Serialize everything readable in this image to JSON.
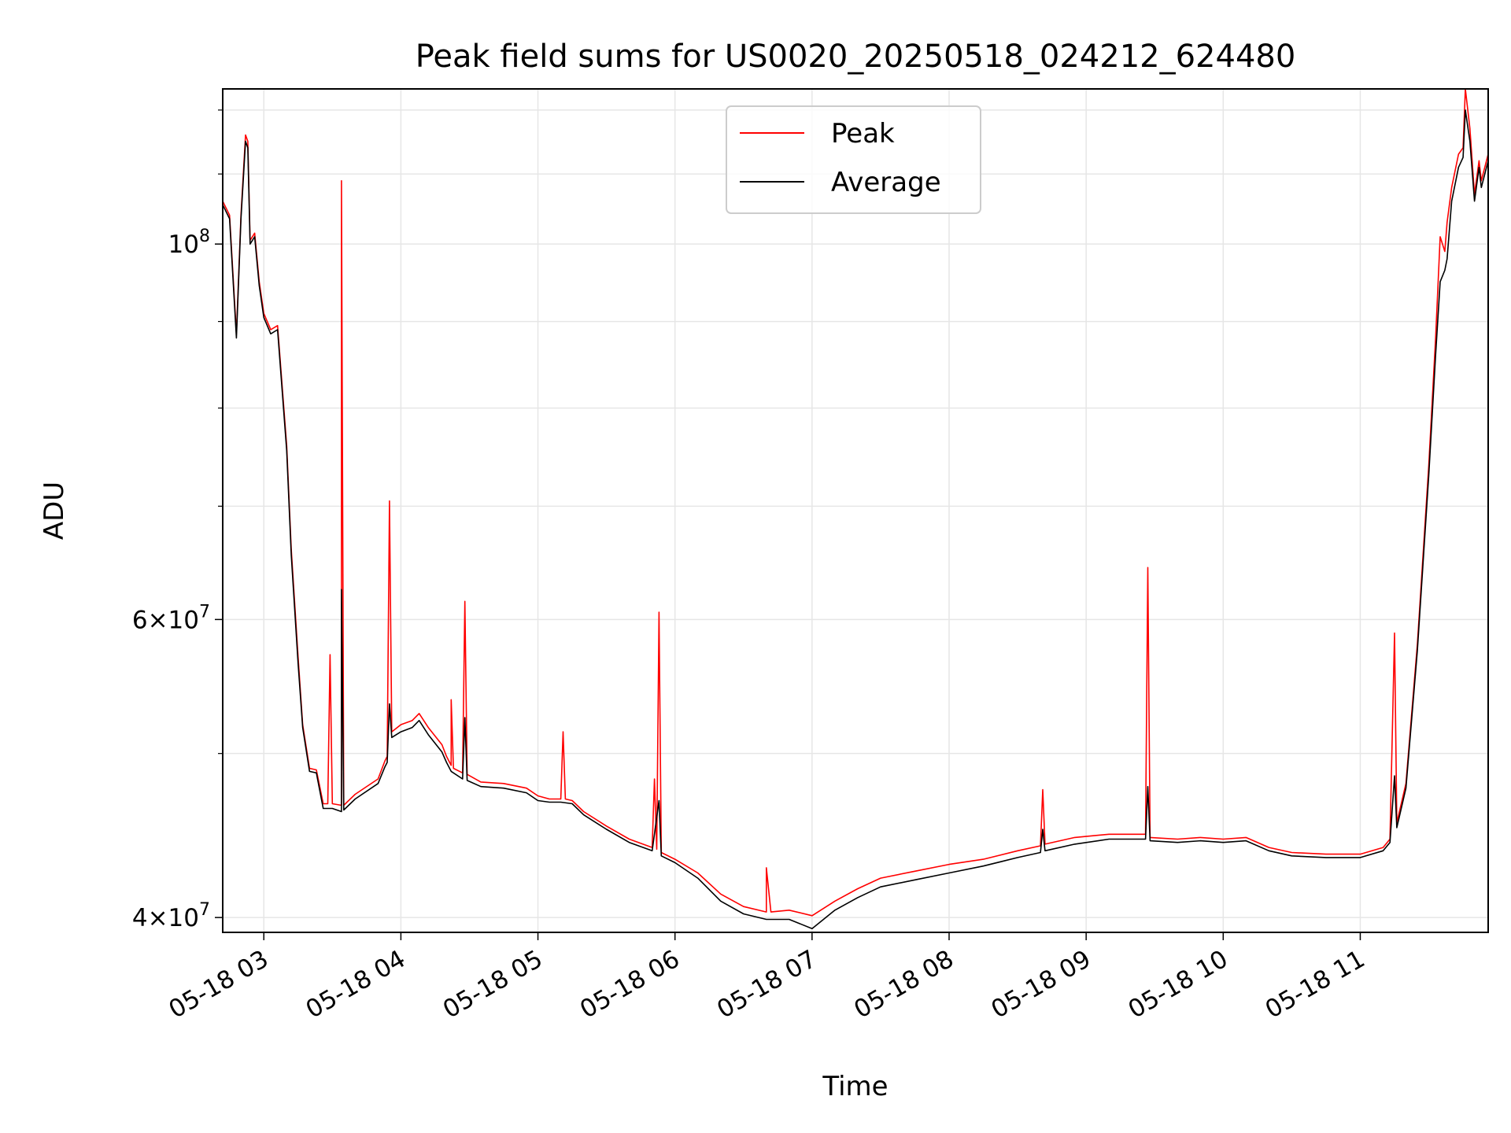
{
  "chart_data": {
    "type": "line",
    "title": "Peak field sums for US0020_20250518_024212_624480",
    "xlabel": "Time",
    "ylabel": "ADU",
    "y_scale": "log",
    "ylim": [
      39200000,
      123500000
    ],
    "xlim": [
      "2025-05-18 02:42",
      "2025-05-18 11:56"
    ],
    "grid": true,
    "legend_position": "upper center",
    "x_ticks": [
      {
        "t": "2025-05-18 03:00",
        "label": "05-18 03"
      },
      {
        "t": "2025-05-18 04:00",
        "label": "05-18 04"
      },
      {
        "t": "2025-05-18 05:00",
        "label": "05-18 05"
      },
      {
        "t": "2025-05-18 06:00",
        "label": "05-18 06"
      },
      {
        "t": "2025-05-18 07:00",
        "label": "05-18 07"
      },
      {
        "t": "2025-05-18 08:00",
        "label": "05-18 08"
      },
      {
        "t": "2025-05-18 09:00",
        "label": "05-18 09"
      },
      {
        "t": "2025-05-18 10:00",
        "label": "05-18 10"
      },
      {
        "t": "2025-05-18 11:00",
        "label": "05-18 11"
      }
    ],
    "y_ticks_major": [
      {
        "value": 40000000,
        "base": "4",
        "times": "×",
        "exp_base": "10",
        "exp": "7"
      },
      {
        "value": 60000000,
        "base": "6",
        "times": "×",
        "exp_base": "10",
        "exp": "7"
      },
      {
        "value": 100000000,
        "base": "",
        "times": "",
        "exp_base": "10",
        "exp": "8"
      }
    ],
    "y_ticks_minor": [
      50000000,
      70000000,
      80000000,
      90000000,
      110000000,
      120000000
    ],
    "series": [
      {
        "name": "Peak",
        "color": "#ff0000",
        "points": [
          [
            "2025-05-18 02:42",
            106000000
          ],
          [
            "2025-05-18 02:45",
            104000000
          ],
          [
            "2025-05-18 02:48",
            88500000
          ],
          [
            "2025-05-18 02:50",
            104000000
          ],
          [
            "2025-05-18 02:52",
            116000000
          ],
          [
            "2025-05-18 02:53",
            115000000
          ],
          [
            "2025-05-18 02:54",
            100500000
          ],
          [
            "2025-05-18 02:56",
            101500000
          ],
          [
            "2025-05-18 02:58",
            95000000
          ],
          [
            "2025-05-18 03:00",
            91000000
          ],
          [
            "2025-05-18 03:03",
            89000000
          ],
          [
            "2025-05-18 03:06",
            89500000
          ],
          [
            "2025-05-18 03:10",
            76000000
          ],
          [
            "2025-05-18 03:12",
            66000000
          ],
          [
            "2025-05-18 03:15",
            57000000
          ],
          [
            "2025-05-18 03:17",
            52000000
          ],
          [
            "2025-05-18 03:20",
            49000000
          ],
          [
            "2025-05-18 03:23",
            48900000
          ],
          [
            "2025-05-18 03:26",
            46700000
          ],
          [
            "2025-05-18 03:28",
            46700000
          ],
          [
            "2025-05-18 03:29",
            57200000
          ],
          [
            "2025-05-18 03:30",
            46700000
          ],
          [
            "2025-05-18 03:34",
            46600000
          ],
          [
            "2025-05-18 03:34",
            109000000
          ],
          [
            "2025-05-18 03:35",
            46600000
          ],
          [
            "2025-05-18 03:40",
            47300000
          ],
          [
            "2025-05-18 03:50",
            48300000
          ],
          [
            "2025-05-18 03:53",
            49500000
          ],
          [
            "2025-05-18 03:54",
            49800000
          ],
          [
            "2025-05-18 03:55",
            70500000
          ],
          [
            "2025-05-18 03:56",
            51500000
          ],
          [
            "2025-05-18 04:00",
            52000000
          ],
          [
            "2025-05-18 04:05",
            52300000
          ],
          [
            "2025-05-18 04:08",
            52800000
          ],
          [
            "2025-05-18 04:12",
            51800000
          ],
          [
            "2025-05-18 04:18",
            50600000
          ],
          [
            "2025-05-18 04:20",
            49800000
          ],
          [
            "2025-05-18 04:22",
            49200000
          ],
          [
            "2025-05-18 04:22",
            53800000
          ],
          [
            "2025-05-18 04:23",
            49000000
          ],
          [
            "2025-05-18 04:27",
            48700000
          ],
          [
            "2025-05-18 04:28",
            61500000
          ],
          [
            "2025-05-18 04:29",
            48600000
          ],
          [
            "2025-05-18 04:35",
            48100000
          ],
          [
            "2025-05-18 04:45",
            48000000
          ],
          [
            "2025-05-18 04:55",
            47700000
          ],
          [
            "2025-05-18 05:00",
            47200000
          ],
          [
            "2025-05-18 05:05",
            47000000
          ],
          [
            "2025-05-18 05:10",
            47000000
          ],
          [
            "2025-05-18 05:11",
            51500000
          ],
          [
            "2025-05-18 05:12",
            47000000
          ],
          [
            "2025-05-18 05:15",
            46900000
          ],
          [
            "2025-05-18 05:20",
            46200000
          ],
          [
            "2025-05-18 05:30",
            45300000
          ],
          [
            "2025-05-18 05:40",
            44500000
          ],
          [
            "2025-05-18 05:50",
            44000000
          ],
          [
            "2025-05-18 05:51",
            48300000
          ],
          [
            "2025-05-18 05:52",
            43900000
          ],
          [
            "2025-05-18 05:53",
            60600000
          ],
          [
            "2025-05-18 05:54",
            43700000
          ],
          [
            "2025-05-18 06:00",
            43300000
          ],
          [
            "2025-05-18 06:10",
            42500000
          ],
          [
            "2025-05-18 06:20",
            41300000
          ],
          [
            "2025-05-18 06:30",
            40600000
          ],
          [
            "2025-05-18 06:40",
            40300000
          ],
          [
            "2025-05-18 06:40",
            42800000
          ],
          [
            "2025-05-18 06:42",
            40300000
          ],
          [
            "2025-05-18 06:50",
            40400000
          ],
          [
            "2025-05-18 07:00",
            40100000
          ],
          [
            "2025-05-18 07:10",
            40900000
          ],
          [
            "2025-05-18 07:20",
            41600000
          ],
          [
            "2025-05-18 07:30",
            42200000
          ],
          [
            "2025-05-18 07:45",
            42600000
          ],
          [
            "2025-05-18 08:00",
            43000000
          ],
          [
            "2025-05-18 08:15",
            43300000
          ],
          [
            "2025-05-18 08:30",
            43800000
          ],
          [
            "2025-05-18 08:40",
            44100000
          ],
          [
            "2025-05-18 08:41",
            47600000
          ],
          [
            "2025-05-18 08:42",
            44200000
          ],
          [
            "2025-05-18 08:55",
            44600000
          ],
          [
            "2025-05-18 09:10",
            44800000
          ],
          [
            "2025-05-18 09:23",
            44800000
          ],
          [
            "2025-05-18 09:26",
            44800000
          ],
          [
            "2025-05-18 09:27",
            64400000
          ],
          [
            "2025-05-18 09:28",
            44600000
          ],
          [
            "2025-05-18 09:40",
            44500000
          ],
          [
            "2025-05-18 09:50",
            44600000
          ],
          [
            "2025-05-18 10:00",
            44500000
          ],
          [
            "2025-05-18 10:10",
            44600000
          ],
          [
            "2025-05-18 10:20",
            44000000
          ],
          [
            "2025-05-18 10:30",
            43700000
          ],
          [
            "2025-05-18 10:45",
            43600000
          ],
          [
            "2025-05-18 11:00",
            43600000
          ],
          [
            "2025-05-18 11:10",
            44000000
          ],
          [
            "2025-05-18 11:13",
            44500000
          ],
          [
            "2025-05-18 11:15",
            58900000
          ],
          [
            "2025-05-18 11:16",
            45500000
          ],
          [
            "2025-05-18 11:20",
            48000000
          ],
          [
            "2025-05-18 11:25",
            58000000
          ],
          [
            "2025-05-18 11:30",
            74000000
          ],
          [
            "2025-05-18 11:33",
            88000000
          ],
          [
            "2025-05-18 11:35",
            101000000
          ],
          [
            "2025-05-18 11:37",
            99000000
          ],
          [
            "2025-05-18 11:38",
            103000000
          ],
          [
            "2025-05-18 11:40",
            108000000
          ],
          [
            "2025-05-18 11:43",
            113000000
          ],
          [
            "2025-05-18 11:45",
            114000000
          ],
          [
            "2025-05-18 11:46",
            123500000
          ],
          [
            "2025-05-18 11:48",
            117000000
          ],
          [
            "2025-05-18 11:50",
            107000000
          ],
          [
            "2025-05-18 11:52",
            112000000
          ],
          [
            "2025-05-18 11:53",
            109000000
          ],
          [
            "2025-05-18 11:56",
            113000000
          ]
        ]
      },
      {
        "name": "Average",
        "color": "#000000",
        "points": [
          [
            "2025-05-18 02:42",
            105500000
          ],
          [
            "2025-05-18 02:45",
            103500000
          ],
          [
            "2025-05-18 02:48",
            88000000
          ],
          [
            "2025-05-18 02:50",
            103500000
          ],
          [
            "2025-05-18 02:52",
            115000000
          ],
          [
            "2025-05-18 02:53",
            114000000
          ],
          [
            "2025-05-18 02:54",
            100000000
          ],
          [
            "2025-05-18 02:56",
            101000000
          ],
          [
            "2025-05-18 02:58",
            94500000
          ],
          [
            "2025-05-18 03:00",
            90500000
          ],
          [
            "2025-05-18 03:03",
            88500000
          ],
          [
            "2025-05-18 03:06",
            89000000
          ],
          [
            "2025-05-18 03:10",
            75500000
          ],
          [
            "2025-05-18 03:12",
            65500000
          ],
          [
            "2025-05-18 03:15",
            56500000
          ],
          [
            "2025-05-18 03:17",
            51800000
          ],
          [
            "2025-05-18 03:20",
            48800000
          ],
          [
            "2025-05-18 03:23",
            48700000
          ],
          [
            "2025-05-18 03:26",
            46400000
          ],
          [
            "2025-05-18 03:30",
            46400000
          ],
          [
            "2025-05-18 03:34",
            46200000
          ],
          [
            "2025-05-18 03:34",
            62500000
          ],
          [
            "2025-05-18 03:35",
            46300000
          ],
          [
            "2025-05-18 03:40",
            47000000
          ],
          [
            "2025-05-18 03:50",
            48000000
          ],
          [
            "2025-05-18 03:53",
            49100000
          ],
          [
            "2025-05-18 03:54",
            49400000
          ],
          [
            "2025-05-18 03:55",
            53500000
          ],
          [
            "2025-05-18 03:56",
            51100000
          ],
          [
            "2025-05-18 04:00",
            51500000
          ],
          [
            "2025-05-18 04:05",
            51800000
          ],
          [
            "2025-05-18 04:08",
            52300000
          ],
          [
            "2025-05-18 04:12",
            51300000
          ],
          [
            "2025-05-18 04:18",
            50100000
          ],
          [
            "2025-05-18 04:20",
            49400000
          ],
          [
            "2025-05-18 04:22",
            48800000
          ],
          [
            "2025-05-18 04:27",
            48300000
          ],
          [
            "2025-05-18 04:28",
            52500000
          ],
          [
            "2025-05-18 04:29",
            48200000
          ],
          [
            "2025-05-18 04:35",
            47800000
          ],
          [
            "2025-05-18 04:45",
            47700000
          ],
          [
            "2025-05-18 04:55",
            47400000
          ],
          [
            "2025-05-18 05:00",
            46900000
          ],
          [
            "2025-05-18 05:05",
            46800000
          ],
          [
            "2025-05-18 05:10",
            46800000
          ],
          [
            "2025-05-18 05:15",
            46700000
          ],
          [
            "2025-05-18 05:20",
            46000000
          ],
          [
            "2025-05-18 05:30",
            45100000
          ],
          [
            "2025-05-18 05:40",
            44300000
          ],
          [
            "2025-05-18 05:50",
            43800000
          ],
          [
            "2025-05-18 05:53",
            46900000
          ],
          [
            "2025-05-18 05:54",
            43500000
          ],
          [
            "2025-05-18 06:00",
            43100000
          ],
          [
            "2025-05-18 06:10",
            42200000
          ],
          [
            "2025-05-18 06:20",
            40900000
          ],
          [
            "2025-05-18 06:30",
            40200000
          ],
          [
            "2025-05-18 06:40",
            39900000
          ],
          [
            "2025-05-18 06:50",
            39900000
          ],
          [
            "2025-05-18 07:00",
            39400000
          ],
          [
            "2025-05-18 07:10",
            40400000
          ],
          [
            "2025-05-18 07:20",
            41100000
          ],
          [
            "2025-05-18 07:30",
            41700000
          ],
          [
            "2025-05-18 07:45",
            42100000
          ],
          [
            "2025-05-18 08:00",
            42500000
          ],
          [
            "2025-05-18 08:15",
            42900000
          ],
          [
            "2025-05-18 08:30",
            43400000
          ],
          [
            "2025-05-18 08:40",
            43700000
          ],
          [
            "2025-05-18 08:41",
            45100000
          ],
          [
            "2025-05-18 08:42",
            43800000
          ],
          [
            "2025-05-18 08:55",
            44200000
          ],
          [
            "2025-05-18 09:10",
            44500000
          ],
          [
            "2025-05-18 09:26",
            44500000
          ],
          [
            "2025-05-18 09:27",
            47800000
          ],
          [
            "2025-05-18 09:28",
            44400000
          ],
          [
            "2025-05-18 09:40",
            44300000
          ],
          [
            "2025-05-18 09:50",
            44400000
          ],
          [
            "2025-05-18 10:00",
            44300000
          ],
          [
            "2025-05-18 10:10",
            44400000
          ],
          [
            "2025-05-18 10:20",
            43800000
          ],
          [
            "2025-05-18 10:30",
            43500000
          ],
          [
            "2025-05-18 10:45",
            43400000
          ],
          [
            "2025-05-18 11:00",
            43400000
          ],
          [
            "2025-05-18 11:10",
            43800000
          ],
          [
            "2025-05-18 11:13",
            44300000
          ],
          [
            "2025-05-18 11:15",
            48500000
          ],
          [
            "2025-05-18 11:16",
            45200000
          ],
          [
            "2025-05-18 11:20",
            47700000
          ],
          [
            "2025-05-18 11:25",
            57500000
          ],
          [
            "2025-05-18 11:30",
            73000000
          ],
          [
            "2025-05-18 11:33",
            86000000
          ],
          [
            "2025-05-18 11:35",
            95000000
          ],
          [
            "2025-05-18 11:37",
            96500000
          ],
          [
            "2025-05-18 11:38",
            98000000
          ],
          [
            "2025-05-18 11:40",
            106000000
          ],
          [
            "2025-05-18 11:43",
            111000000
          ],
          [
            "2025-05-18 11:45",
            112500000
          ],
          [
            "2025-05-18 11:46",
            120000000
          ],
          [
            "2025-05-18 11:48",
            115000000
          ],
          [
            "2025-05-18 11:50",
            106000000
          ],
          [
            "2025-05-18 11:52",
            111000000
          ],
          [
            "2025-05-18 11:53",
            108000000
          ],
          [
            "2025-05-18 11:56",
            112000000
          ]
        ]
      }
    ]
  }
}
